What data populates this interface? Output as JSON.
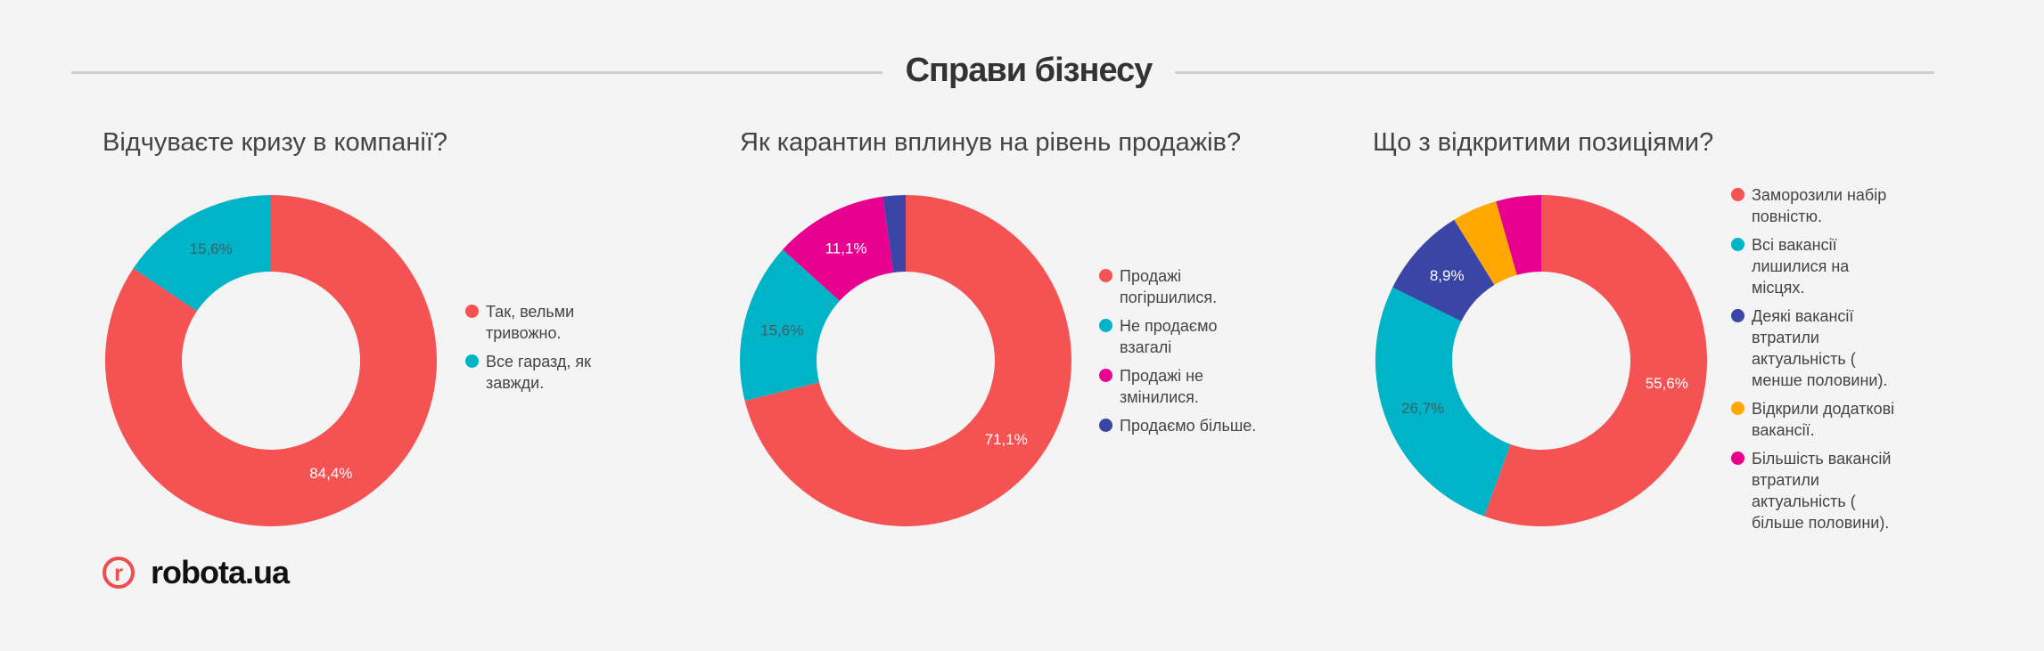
{
  "header": {
    "title": "Справи бізнесу"
  },
  "colors": {
    "red": "#f55353",
    "cyan": "#00b4c8",
    "magenta": "#e8008f",
    "blue": "#3a45a6",
    "orange": "#ffa800"
  },
  "chart_data": [
    {
      "type": "pie",
      "title": "Відчуваєте кризу в компанії?",
      "labels": [
        "Так, вельми тривожно.",
        "Все гаразд, як завжди."
      ],
      "values": [
        84.4,
        15.6
      ],
      "data_labels": [
        "84,4%",
        "15,6%"
      ],
      "colors": [
        "#f55353",
        "#00b4c8"
      ],
      "legend": "right",
      "hole": true
    },
    {
      "type": "pie",
      "title": "Як карантин вплинув на рівень продажів?",
      "labels": [
        "Продажі погіршилися.",
        "Не продаємо взагалі",
        "Продажі не змінилися.",
        "Продаємо більше."
      ],
      "values": [
        71.1,
        15.6,
        11.1,
        2.2
      ],
      "data_labels": [
        "71,1%",
        "15,6%",
        "11,1%",
        ""
      ],
      "colors": [
        "#f55353",
        "#00b4c8",
        "#e8008f",
        "#3a45a6"
      ],
      "legend": "right",
      "hole": true
    },
    {
      "type": "pie",
      "title": "Що з відкритими позиціями?",
      "labels": [
        "Заморозили набір повністю.",
        "Всі вакансії лишилися на місцях.",
        "Деякі вакансії втратили актуальність ( менше половини).",
        "Відкрили додаткові вакансії.",
        "Більшість вакансій втратили актуальність ( більше половини)."
      ],
      "values": [
        55.6,
        26.7,
        8.9,
        4.4,
        4.4
      ],
      "data_labels": [
        "55,6%",
        "26,7%",
        "8,9%",
        "",
        ""
      ],
      "colors": [
        "#f55353",
        "#00b4c8",
        "#3a45a6",
        "#ffa800",
        "#e8008f"
      ],
      "legend": "right",
      "hole": true
    }
  ],
  "logo": {
    "mark": "r",
    "text": "robota.ua"
  }
}
